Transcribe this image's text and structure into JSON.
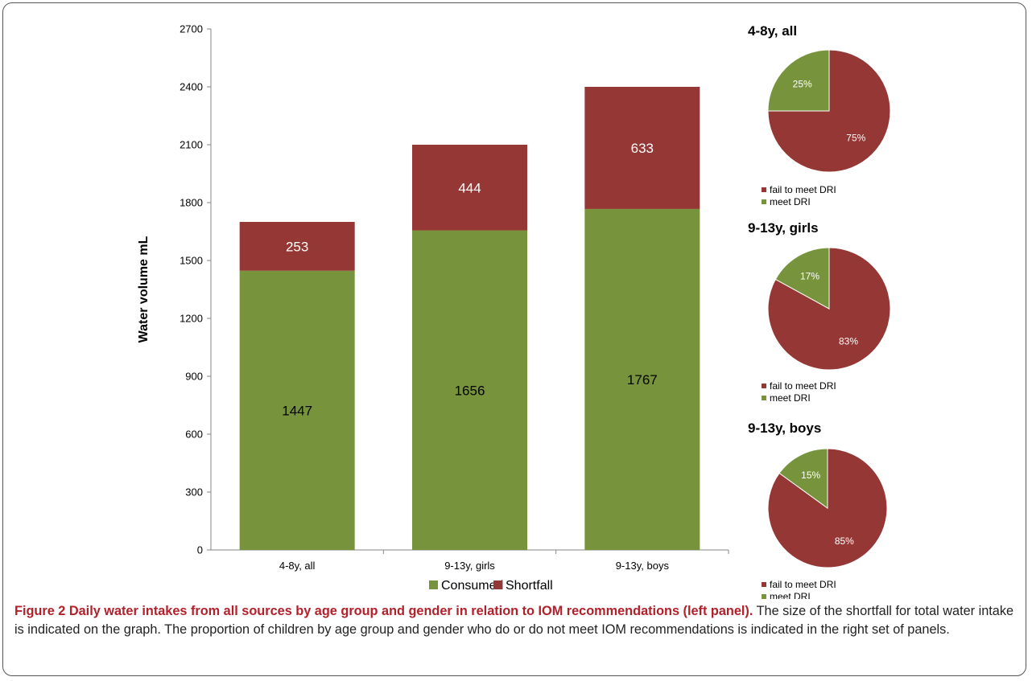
{
  "chart_data": [
    {
      "type": "bar",
      "stacked": true,
      "categories": [
        "4-8y, all",
        "9-13y, girls",
        "9-13y, boys"
      ],
      "series": [
        {
          "name": "Consumed",
          "values": [
            1447,
            1656,
            1767
          ],
          "color": "#77933c"
        },
        {
          "name": "Shortfall",
          "values": [
            253,
            444,
            633
          ],
          "color": "#953735"
        }
      ],
      "data_labels": {
        "Consumed": [
          "1447",
          "1656",
          "1767"
        ],
        "Shortfall": [
          "253",
          "444",
          "633"
        ]
      },
      "ylabel": "Water volume mL",
      "ylim": [
        0,
        2700
      ],
      "yticks": [
        0,
        300,
        600,
        900,
        1200,
        1500,
        1800,
        2100,
        2400,
        2700
      ],
      "legend_position": "bottom",
      "grid": false
    },
    {
      "type": "pie",
      "title": "4-8y, all",
      "slices": [
        {
          "name": "fail to meet DRI",
          "value": 75,
          "label": "75%",
          "color": "#953735"
        },
        {
          "name": "meet DRI",
          "value": 25,
          "label": "25%",
          "color": "#77933c"
        }
      ],
      "legend_position": "bottom"
    },
    {
      "type": "pie",
      "title": "9-13y, girls",
      "slices": [
        {
          "name": "fail to meet DRI",
          "value": 83,
          "label": "83%",
          "color": "#953735"
        },
        {
          "name": "meet DRI",
          "value": 17,
          "label": "17%",
          "color": "#77933c"
        }
      ],
      "legend_position": "bottom"
    },
    {
      "type": "pie",
      "title": "9-13y, boys",
      "slices": [
        {
          "name": "fail to meet DRI",
          "value": 85,
          "label": "85%",
          "color": "#953735"
        },
        {
          "name": "meet DRI",
          "value": 15,
          "label": "15%",
          "color": "#77933c"
        }
      ],
      "legend_position": "bottom"
    }
  ],
  "caption": {
    "bold": "Figure 2 Daily water intakes from all sources by age group and gender in relation to IOM recommendations (left panel).",
    "text": " The size of the shortfall for total water intake is indicated on the graph. The proportion of children by age group and gender who do or do not meet IOM recommendations is indicated in the right set of panels."
  }
}
